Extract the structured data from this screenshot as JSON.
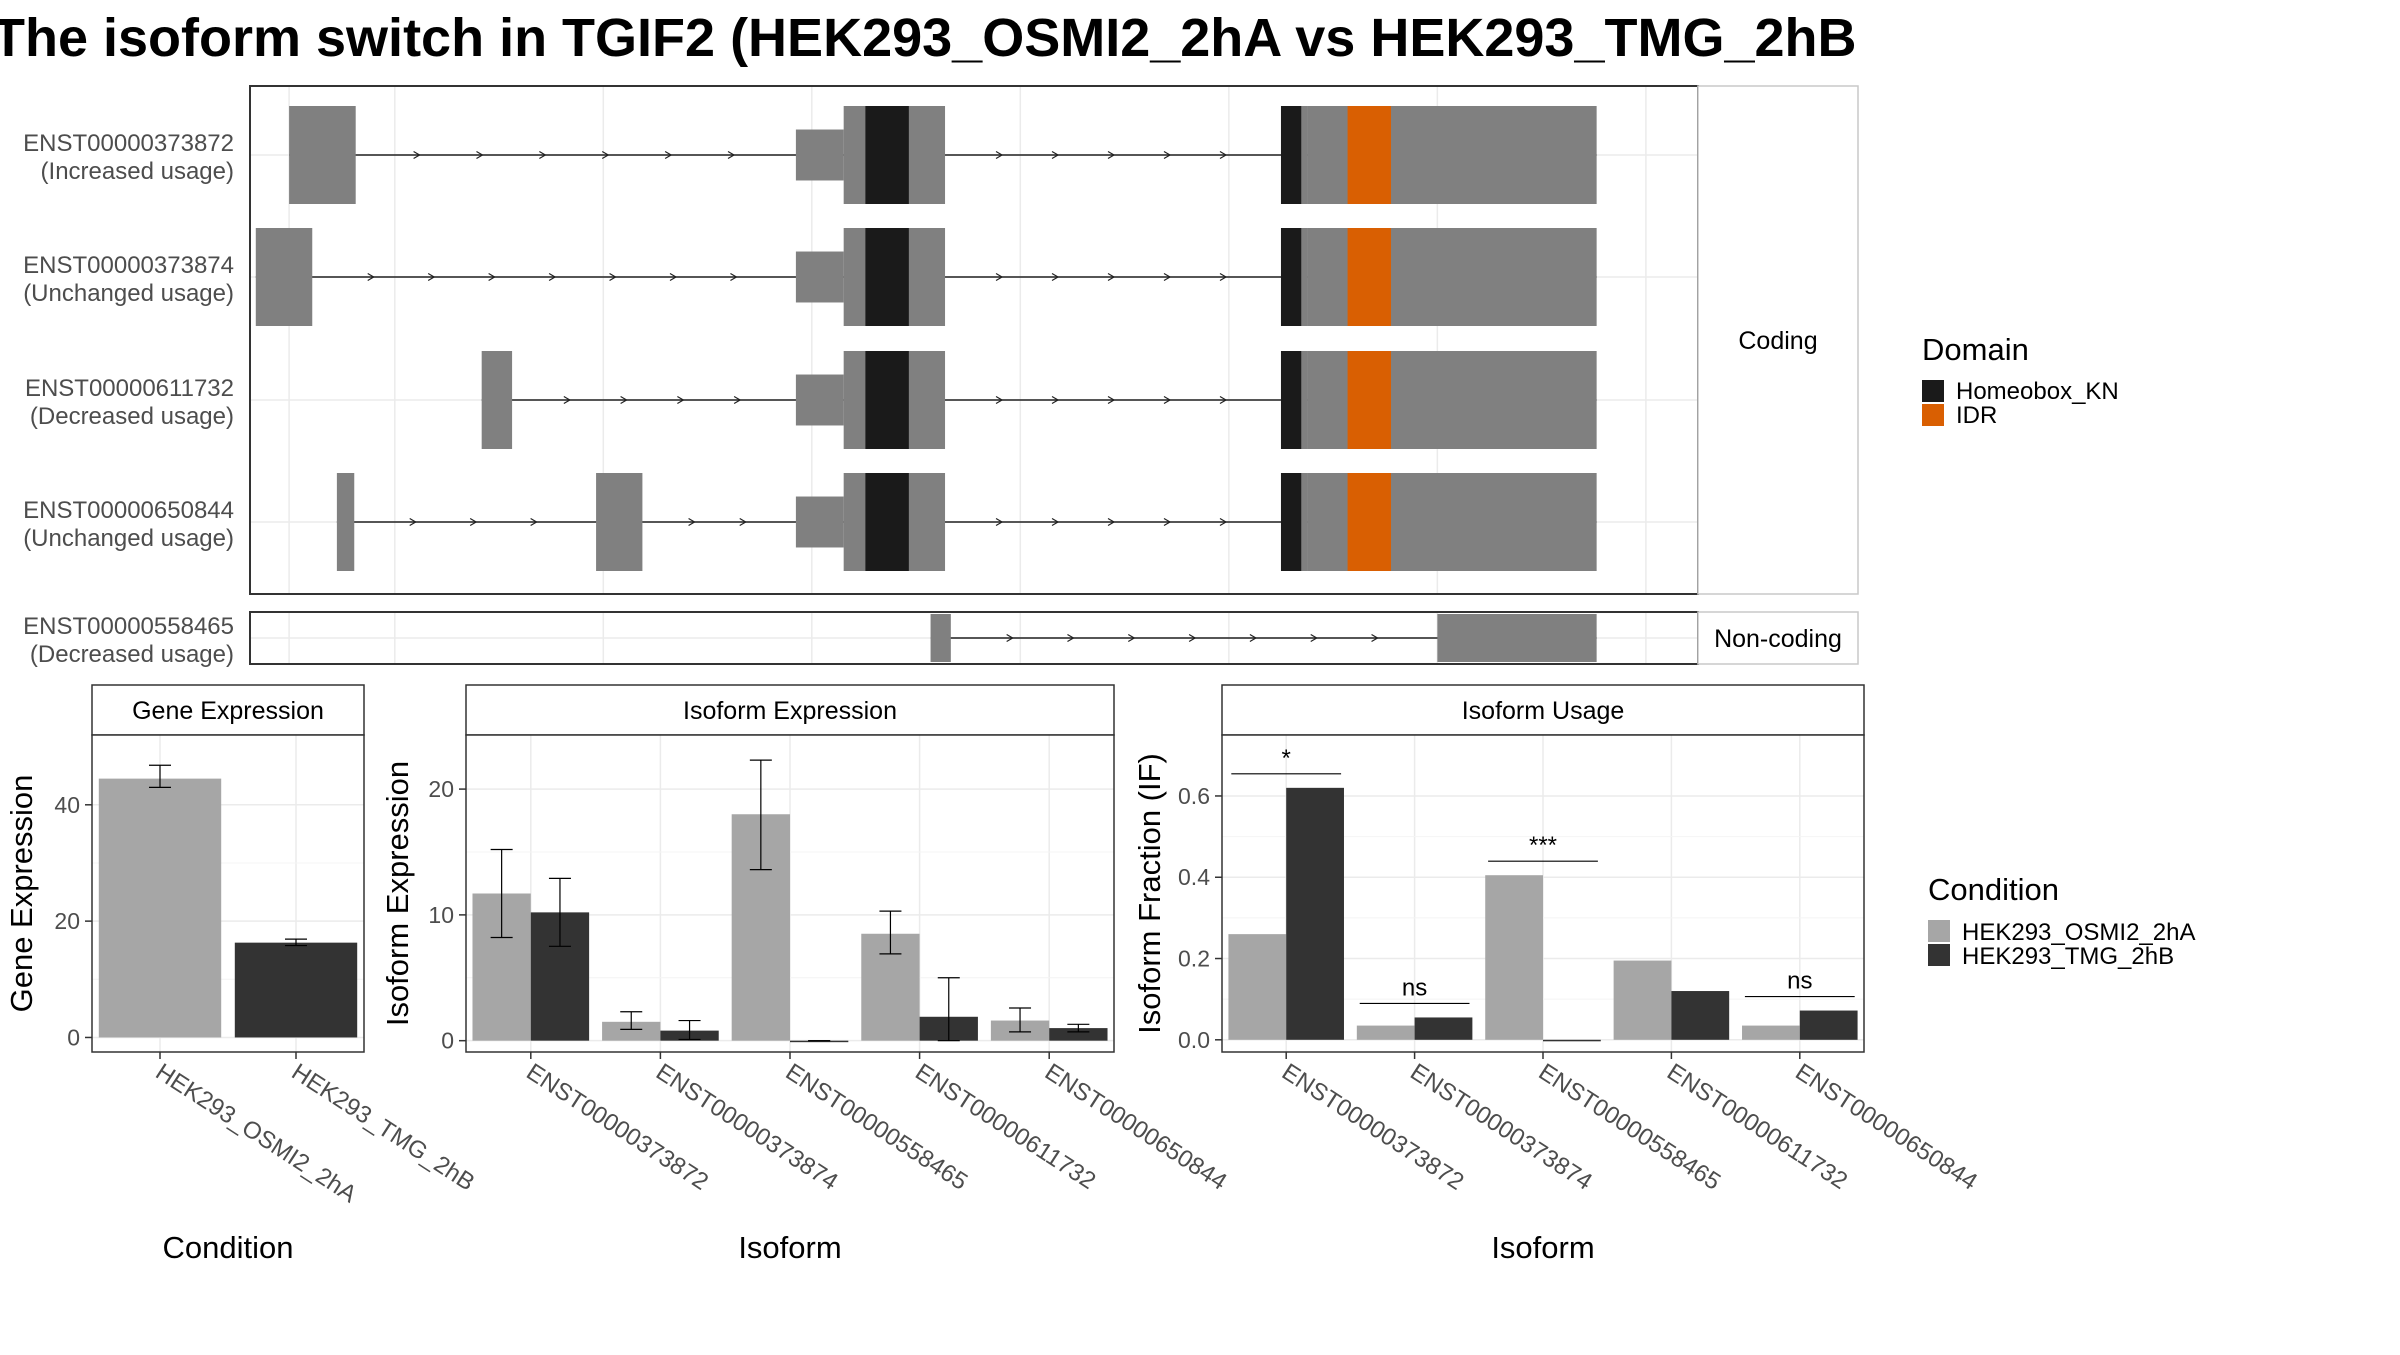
{
  "title": "The isoform switch in TGIF2 (HEK293_OSMI2_2hA vs HEK293_TMG_2hB",
  "colors": {
    "intron": "#222222",
    "exon": "#808080",
    "homeobox": "#1a1a1a",
    "idr": "#d95f02",
    "cond_a": "#a6a6a6",
    "cond_b": "#333333",
    "grid": "#ebebeb",
    "strip_fill": "#ffffff",
    "panel_border": "#333333"
  },
  "structure": {
    "coding_label": "Coding",
    "noncoding_label": "Non-coding",
    "coding_isoforms": [
      {
        "id": "ENST00000373872",
        "usage": "(Increased usage)",
        "span": [
          0.027,
          0.93
        ],
        "exons": [
          [
            0.027,
            0.073
          ],
          [
            0.377,
            0.41,
            "thin"
          ],
          [
            0.41,
            0.48
          ],
          [
            0.712,
            0.73
          ],
          [
            0.73,
            0.93
          ]
        ],
        "domains": [
          [
            0.425,
            0.455,
            "homeobox"
          ],
          [
            0.712,
            0.726,
            "homeobox"
          ],
          [
            0.758,
            0.788,
            "idr"
          ]
        ]
      },
      {
        "id": "ENST00000373874",
        "usage": "(Unchanged usage)",
        "span": [
          0.004,
          0.93
        ],
        "exons": [
          [
            0.004,
            0.043
          ],
          [
            0.377,
            0.41,
            "thin"
          ],
          [
            0.41,
            0.48
          ],
          [
            0.712,
            0.73
          ],
          [
            0.73,
            0.93
          ]
        ],
        "domains": [
          [
            0.425,
            0.455,
            "homeobox"
          ],
          [
            0.712,
            0.726,
            "homeobox"
          ],
          [
            0.758,
            0.788,
            "idr"
          ]
        ]
      },
      {
        "id": "ENST00000611732",
        "usage": "(Decreased usage)",
        "span": [
          0.16,
          0.93
        ],
        "exons": [
          [
            0.16,
            0.181
          ],
          [
            0.377,
            0.41,
            "thin"
          ],
          [
            0.41,
            0.48
          ],
          [
            0.712,
            0.73
          ],
          [
            0.73,
            0.93
          ]
        ],
        "domains": [
          [
            0.425,
            0.455,
            "homeobox"
          ],
          [
            0.712,
            0.726,
            "homeobox"
          ],
          [
            0.758,
            0.788,
            "idr"
          ]
        ]
      },
      {
        "id": "ENST00000650844",
        "usage": "(Unchanged usage)",
        "span": [
          0.06,
          0.93
        ],
        "exons": [
          [
            0.06,
            0.072
          ],
          [
            0.239,
            0.271
          ],
          [
            0.377,
            0.41,
            "thin"
          ],
          [
            0.41,
            0.48
          ],
          [
            0.712,
            0.73
          ],
          [
            0.73,
            0.93
          ]
        ],
        "domains": [
          [
            0.425,
            0.455,
            "homeobox"
          ],
          [
            0.712,
            0.726,
            "homeobox"
          ],
          [
            0.758,
            0.788,
            "idr"
          ]
        ]
      }
    ],
    "noncoding_isoforms": [
      {
        "id": "ENST00000558465",
        "usage": "(Decreased usage)",
        "span": [
          0.47,
          0.93
        ],
        "exons": [
          [
            0.47,
            0.484
          ],
          [
            0.82,
            0.93
          ]
        ],
        "domains": []
      }
    ]
  },
  "legend_domain": {
    "title": "Domain",
    "items": [
      {
        "label": "Homeobox_KN",
        "key": "homeobox"
      },
      {
        "label": "IDR",
        "key": "idr"
      }
    ]
  },
  "legend_condition": {
    "title": "Condition",
    "items": [
      {
        "label": "HEK293_OSMI2_2hA",
        "key": "cond_a"
      },
      {
        "label": "HEK293_TMG_2hB",
        "key": "cond_b"
      }
    ]
  },
  "chart_data": [
    {
      "type": "bar",
      "title": "Gene Expression",
      "xlabel": "Condition",
      "ylabel": "Gene Expression",
      "ylim": [
        -2.5,
        52
      ],
      "yticks": [
        0,
        20,
        40
      ],
      "categories": [
        "HEK293_OSMI2_2hA",
        "HEK293_TMG_2hB"
      ],
      "values": [
        44.5,
        16.3
      ],
      "errors": [
        [
          43.0,
          46.8
        ],
        [
          15.8,
          16.9
        ]
      ],
      "colors": [
        "cond_a",
        "cond_b"
      ]
    },
    {
      "type": "bar",
      "title": "Isoform Expression",
      "xlabel": "Isoform",
      "ylabel": "Isoform Expression",
      "ylim": [
        -0.9,
        24.3
      ],
      "yticks": [
        0,
        10,
        20
      ],
      "categories": [
        "ENST00000373872",
        "ENST00000373874",
        "ENST00000558465",
        "ENST00000611732",
        "ENST00000650844"
      ],
      "series": [
        {
          "name": "HEK293_OSMI2_2hA",
          "values": [
            11.7,
            1.5,
            18.0,
            8.5,
            1.6
          ],
          "errors": [
            [
              8.2,
              15.2
            ],
            [
              0.9,
              2.3
            ],
            [
              13.6,
              22.3
            ],
            [
              6.9,
              10.3
            ],
            [
              0.7,
              2.6
            ]
          ]
        },
        {
          "name": "HEK293_TMG_2hB",
          "values": [
            10.2,
            0.8,
            0.0,
            1.9,
            1.0
          ],
          "errors": [
            [
              7.5,
              12.9
            ],
            [
              0.1,
              1.6
            ],
            [
              0.0,
              0.0
            ],
            [
              0.0,
              5.0
            ],
            [
              0.7,
              1.3
            ]
          ]
        }
      ]
    },
    {
      "type": "bar",
      "title": "Isoform Usage",
      "xlabel": "Isoform",
      "ylabel": "Isoform Fraction (IF)",
      "ylim": [
        -0.03,
        0.75
      ],
      "yticks": [
        0.0,
        0.2,
        0.4,
        0.6
      ],
      "ytick_labels": [
        "0.0",
        "0.2",
        "0.4",
        "0.6"
      ],
      "categories": [
        "ENST00000373872",
        "ENST00000373874",
        "ENST00000558465",
        "ENST00000611732",
        "ENST00000650844"
      ],
      "series": [
        {
          "name": "HEK293_OSMI2_2hA",
          "values": [
            0.26,
            0.035,
            0.405,
            0.195,
            0.035
          ]
        },
        {
          "name": "HEK293_TMG_2hB",
          "values": [
            0.62,
            0.055,
            0.0,
            0.12,
            0.072
          ]
        }
      ],
      "significance": [
        "*",
        "ns",
        "***",
        "",
        "ns"
      ]
    }
  ]
}
